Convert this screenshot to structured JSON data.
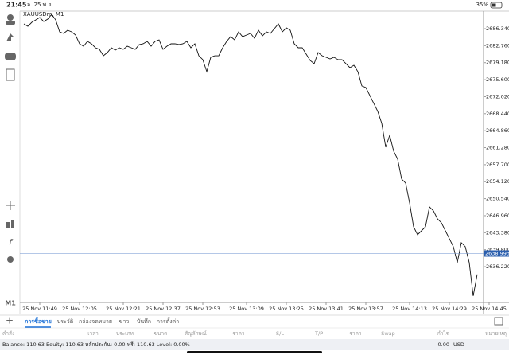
{
  "status_bar": {
    "time": "21:45",
    "date": "จ. 25 พ.ย.",
    "battery": "35%"
  },
  "toolbar": {
    "timeframe": "M1"
  },
  "chart_data": {
    "type": "line",
    "title": "XAUUSDm, M1",
    "categories": [
      null,
      null,
      null,
      null,
      "25 Nov 11:49",
      null,
      null,
      null,
      null,
      null,
      null,
      null,
      null,
      null,
      "25 Nov 12:05",
      null,
      null,
      null,
      null,
      null,
      null,
      null,
      null,
      null,
      null,
      "25 Nov 12:21",
      null,
      null,
      null,
      null,
      null,
      null,
      null,
      null,
      null,
      "25 Nov 12:37",
      null,
      null,
      null,
      null,
      null,
      null,
      null,
      null,
      null,
      "25 Nov 12:53",
      null,
      null,
      null,
      null,
      null,
      null,
      null,
      null,
      null,
      null,
      "25 Nov 13:09",
      null,
      null,
      null,
      null,
      null,
      null,
      null,
      null,
      null,
      "25 Nov 13:25",
      null,
      null,
      null,
      null,
      null,
      null,
      null,
      null,
      null,
      "25 Nov 13:41",
      null,
      null,
      null,
      null,
      null,
      null,
      null,
      null,
      null,
      "25 Nov 13:57",
      null,
      null,
      null,
      null,
      null,
      null,
      null,
      null,
      null,
      null,
      "25 Nov 14:13",
      null,
      null,
      null,
      null,
      null,
      null,
      null,
      null,
      null,
      "25 Nov 14:29",
      null,
      null,
      null,
      null,
      null,
      null,
      null,
      null,
      null,
      "25 Nov 14:45"
    ],
    "series": [
      {
        "name": "XAUUSDm",
        "color": "#111111",
        "values": [
          2687.35,
          2686.84,
          2687.68,
          2688.18,
          2688.69,
          2687.85,
          2688.35,
          2689.36,
          2688.18,
          2685.67,
          2685.34,
          2686.01,
          2685.67,
          2685.0,
          2683.16,
          2682.65,
          2683.66,
          2683.16,
          2682.32,
          2681.98,
          2680.64,
          2681.31,
          2682.32,
          2681.82,
          2682.32,
          2681.98,
          2682.65,
          2682.32,
          2681.98,
          2682.99,
          2683.16,
          2683.66,
          2682.65,
          2683.66,
          2683.99,
          2681.98,
          2682.65,
          2683.16,
          2683.16,
          2682.99,
          2683.16,
          2683.66,
          2682.32,
          2683.16,
          2680.64,
          2679.81,
          2677.29,
          2680.31,
          2680.64,
          2680.64,
          2682.32,
          2683.66,
          2684.66,
          2683.99,
          2685.67,
          2684.66,
          2685.0,
          2685.34,
          2684.33,
          2686.01,
          2684.83,
          2685.67,
          2685.34,
          2686.34,
          2687.35,
          2685.67,
          2686.51,
          2686.01,
          2683.16,
          2682.32,
          2682.32,
          2680.98,
          2679.64,
          2678.97,
          2681.31,
          2680.64,
          2680.31,
          2679.97,
          2680.31,
          2679.81,
          2679.81,
          2678.97,
          2678.13,
          2678.63,
          2677.29,
          2674.28,
          2673.94,
          2672.27,
          2670.59,
          2668.92,
          2666.41,
          2661.38,
          2663.89,
          2660.54,
          2658.87,
          2654.68,
          2653.84,
          2649.66,
          2644.63,
          2642.96,
          2643.79,
          2644.63,
          2648.82,
          2647.98,
          2646.31,
          2645.47,
          2643.79,
          2642.12,
          2640.44,
          2637.09,
          2641.28,
          2640.44,
          2637.09,
          2630.06,
          2634.58,
          null,
          null,
          null
        ]
      }
    ],
    "current_price": {
      "value": 2638.993,
      "label": "2638.993"
    },
    "ylim": [
      2629.02,
      2690.03
    ],
    "yticks": [
      {
        "value": 2686.34,
        "label": "2686.340"
      },
      {
        "value": 2682.76,
        "label": "2682.760"
      },
      {
        "value": 2679.18,
        "label": "2679.180"
      },
      {
        "value": 2675.6,
        "label": "2675.600"
      },
      {
        "value": 2672.02,
        "label": "2672.020"
      },
      {
        "value": 2668.44,
        "label": "2668.440"
      },
      {
        "value": 2664.86,
        "label": "2664.860"
      },
      {
        "value": 2661.28,
        "label": "2661.280"
      },
      {
        "value": 2657.7,
        "label": "2657.700"
      },
      {
        "value": 2654.12,
        "label": "2654.120"
      },
      {
        "value": 2650.54,
        "label": "2650.540"
      },
      {
        "value": 2646.96,
        "label": "2646.960"
      },
      {
        "value": 2643.38,
        "label": "2643.380"
      },
      {
        "value": 2639.8,
        "label": "2639.800"
      },
      {
        "value": 2636.22,
        "label": "2636.220"
      }
    ],
    "grid": false
  },
  "tabs": [
    "การซื้อขาย",
    "ประวัติ",
    "กล่องจดหมาย",
    "ข่าว",
    "บันทึก",
    "การตั้งค่า"
  ],
  "table": {
    "columns": [
      "คำสั่ง",
      "เวลา",
      "ประเภท",
      "ขนาด",
      "สัญลักษณ์",
      "ราคา",
      "S/L",
      "T/P",
      "ราคา",
      "Swap",
      "กำไร",
      "หมายเหตุ"
    ]
  },
  "footer": {
    "summary": "Balance: 110.63 Equity: 110.63 หลักประกัน: 0.00 ฟรี: 110.63 Level: 0.00%",
    "profit": "0.00",
    "currency": "USD"
  }
}
